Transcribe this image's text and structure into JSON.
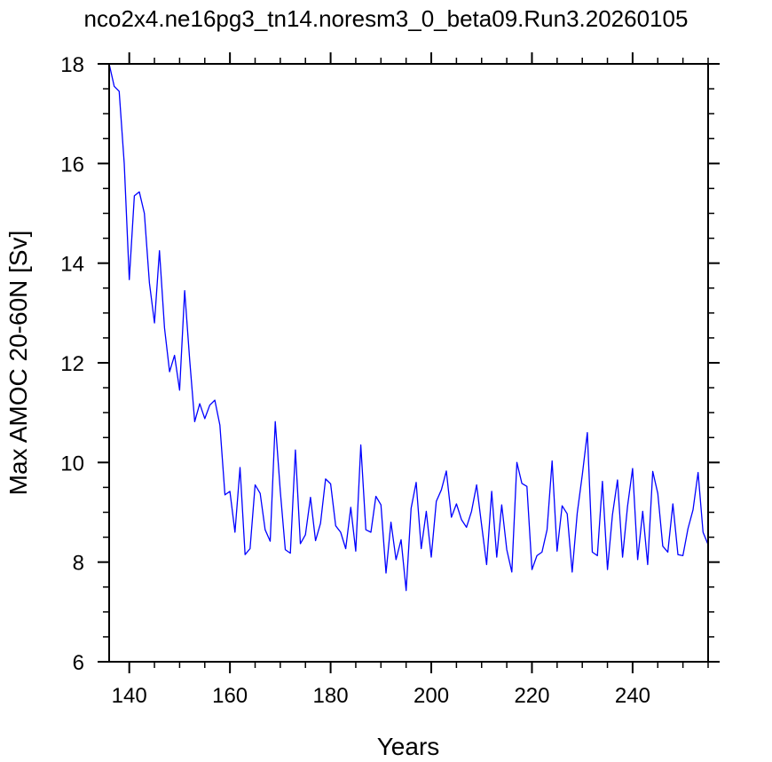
{
  "chart_data": {
    "type": "line",
    "title": "nco2x4.ne16pg3_tn14.noresm3_0_beta09.Run3.20260105",
    "xlabel": "Years",
    "ylabel": "Max AMOC 20-60N [Sv]",
    "xlim": [
      136,
      255
    ],
    "ylim": [
      6,
      18
    ],
    "x_ticks": [
      140,
      160,
      180,
      200,
      220,
      240
    ],
    "x_tick_labels": [
      "140",
      "160",
      "180",
      "200",
      "220",
      "240"
    ],
    "y_ticks": [
      6,
      8,
      10,
      12,
      14,
      16,
      18
    ],
    "y_tick_labels": [
      "6",
      "8",
      "10",
      "12",
      "14",
      "16",
      "18"
    ],
    "grid": false,
    "line_color": "#0000ff",
    "series": [
      {
        "x": [
          136,
          137,
          138,
          139,
          140,
          141,
          142,
          143,
          144,
          145,
          146,
          147,
          148,
          149,
          150,
          151,
          152,
          153,
          154,
          155,
          156,
          157,
          158,
          159,
          160,
          161,
          162,
          163,
          164,
          165,
          166,
          167,
          168,
          169,
          170,
          171,
          172,
          173,
          174,
          175,
          176,
          177,
          178,
          179,
          180,
          181,
          182,
          183,
          184,
          185,
          186,
          187,
          188,
          189,
          190,
          191,
          192,
          193,
          194,
          195,
          196,
          197,
          198,
          199,
          200,
          201,
          202,
          203,
          204,
          205,
          206,
          207,
          208,
          209,
          210,
          211,
          212,
          213,
          214,
          215,
          216,
          217,
          218,
          219,
          220,
          221,
          222,
          223,
          224,
          225,
          226,
          227,
          228,
          229,
          230,
          231,
          232,
          233,
          234,
          235,
          236,
          237,
          238,
          239,
          240,
          241,
          242,
          243,
          244,
          245,
          246,
          247,
          248,
          249,
          250,
          251,
          252,
          253,
          254,
          255
        ],
        "y": [
          18.0,
          17.55,
          17.45,
          16.0,
          13.67,
          15.35,
          15.43,
          15.0,
          13.6,
          12.8,
          14.25,
          12.7,
          11.82,
          12.15,
          11.45,
          13.45,
          12.05,
          10.82,
          11.18,
          10.88,
          11.15,
          11.25,
          10.75,
          9.35,
          9.42,
          8.6,
          9.9,
          8.15,
          8.27,
          9.55,
          9.38,
          8.65,
          8.42,
          10.82,
          9.42,
          8.25,
          8.18,
          10.25,
          8.37,
          8.55,
          9.3,
          8.43,
          8.78,
          9.67,
          9.57,
          8.73,
          8.6,
          8.27,
          9.1,
          8.22,
          10.35,
          8.65,
          8.6,
          9.32,
          9.15,
          7.78,
          8.8,
          8.05,
          8.45,
          7.43,
          9.08,
          9.6,
          8.27,
          9.02,
          8.1,
          9.22,
          9.45,
          9.83,
          8.9,
          9.17,
          8.85,
          8.7,
          9.02,
          9.55,
          8.75,
          7.95,
          9.42,
          8.1,
          9.15,
          8.25,
          7.8,
          10.0,
          9.58,
          9.52,
          7.85,
          8.13,
          8.2,
          8.65,
          10.03,
          8.22,
          9.13,
          8.97,
          7.8,
          8.98,
          9.75,
          10.6,
          8.2,
          8.13,
          9.62,
          7.85,
          8.95,
          9.65,
          8.1,
          9.12,
          9.88,
          8.05,
          9.02,
          7.95,
          9.82,
          9.38,
          8.32,
          8.2,
          9.17,
          8.15,
          8.13,
          8.67,
          9.05,
          9.8,
          8.6,
          8.35
        ]
      }
    ]
  }
}
